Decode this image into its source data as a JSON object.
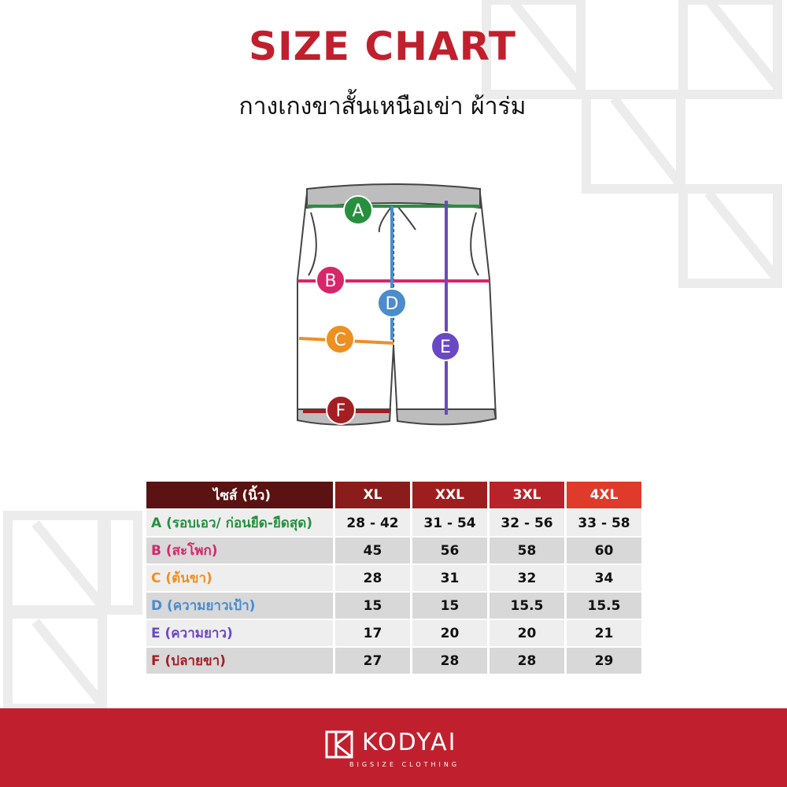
{
  "header": {
    "title": "SIZE CHART",
    "subtitle": "กางเกงขาสั้นเหนือเข่า ผ้าร่ม"
  },
  "diagram": {
    "labels": [
      "A",
      "B",
      "C",
      "D",
      "E",
      "F"
    ]
  },
  "table": {
    "columns": [
      "ไซส์ (นิ้ว)",
      "XL",
      "XXL",
      "3XL",
      "4XL"
    ],
    "rows": [
      [
        "A (รอบเอว/ ก่อนยืด-ยืดสุด)",
        "28 - 42",
        "31 - 54",
        "32 - 56",
        "33 - 58"
      ],
      [
        "B (สะโพก)",
        "45",
        "56",
        "58",
        "60"
      ],
      [
        "C (ต้นขา)",
        "28",
        "31",
        "32",
        "34"
      ],
      [
        "D (ความยาวเป้า)",
        "15",
        "15",
        "15.5",
        "15.5"
      ],
      [
        "E (ความยาว)",
        "17",
        "20",
        "20",
        "21"
      ],
      [
        "F (ปลายขา)",
        "27",
        "28",
        "28",
        "29"
      ]
    ]
  },
  "footer": {
    "brand": "KODYAI",
    "tagline": "BIGSIZE CLOTHING"
  }
}
